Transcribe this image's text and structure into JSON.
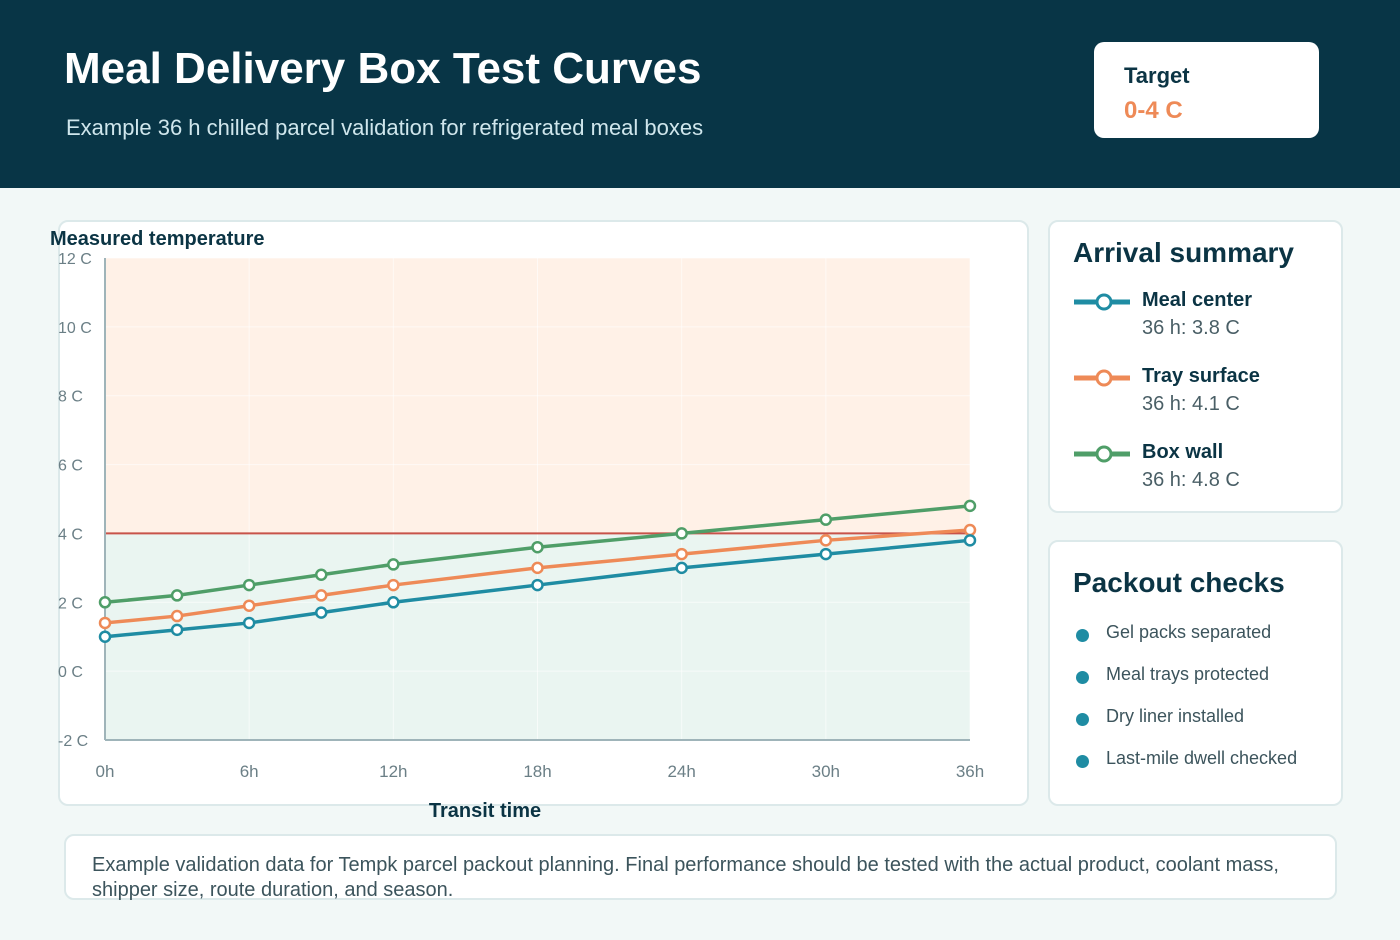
{
  "header": {
    "title": "Meal Delivery Box Test Curves",
    "subtitle": "Example 36 h chilled parcel validation for refrigerated meal boxes",
    "target_label": "Target",
    "target_value": "0-4 C"
  },
  "summary": {
    "title": "Arrival summary",
    "items": [
      {
        "name": "Meal center",
        "value": "36 h: 3.8 C",
        "color": "#1f8ca3"
      },
      {
        "name": "Tray surface",
        "value": "36 h: 4.1 C",
        "color": "#ee8a57"
      },
      {
        "name": "Box wall",
        "value": "36 h: 4.8 C",
        "color": "#4f9e68"
      }
    ]
  },
  "checks": {
    "title": "Packout checks",
    "items": [
      "Gel packs separated",
      "Meal trays protected",
      "Dry liner installed",
      "Last-mile dwell checked"
    ]
  },
  "note": "Example validation data for Tempk parcel packout planning. Final performance should be tested with the actual product, coolant mass, shipper size, route duration, and season.",
  "chart_data": {
    "type": "line",
    "ylabel": "Measured temperature",
    "xlabel": "Transit time",
    "x": [
      0,
      3,
      6,
      9,
      12,
      18,
      24,
      30,
      36
    ],
    "xticks": [
      0,
      6,
      12,
      18,
      24,
      30,
      36
    ],
    "xtick_labels": [
      "0h",
      "6h",
      "12h",
      "18h",
      "24h",
      "30h",
      "36h"
    ],
    "yticks": [
      -2,
      0,
      2,
      4,
      6,
      8,
      10,
      12
    ],
    "ytick_labels": [
      "-2 C",
      "0 C",
      "2 C",
      "4 C",
      "6 C",
      "8 C",
      "10 C",
      "12 C"
    ],
    "xlim": [
      0,
      36
    ],
    "ylim": [
      -2,
      12
    ],
    "target_band": [
      -2,
      4
    ],
    "limit_line": 4,
    "grid": true,
    "colors": {
      "band_ok": "#eaf5f1",
      "band_warn": "#fff1e7",
      "limit": "#c8534a"
    },
    "series": [
      {
        "name": "Meal center",
        "color": "#1f8ca3",
        "values": [
          1.0,
          1.2,
          1.4,
          1.7,
          2.0,
          2.5,
          3.0,
          3.4,
          3.8
        ]
      },
      {
        "name": "Tray surface",
        "color": "#ee8a57",
        "values": [
          1.4,
          1.6,
          1.9,
          2.2,
          2.5,
          3.0,
          3.4,
          3.8,
          4.1
        ]
      },
      {
        "name": "Box wall",
        "color": "#4f9e68",
        "values": [
          2.0,
          2.2,
          2.5,
          2.8,
          3.1,
          3.6,
          4.0,
          4.4,
          4.8
        ]
      }
    ]
  }
}
